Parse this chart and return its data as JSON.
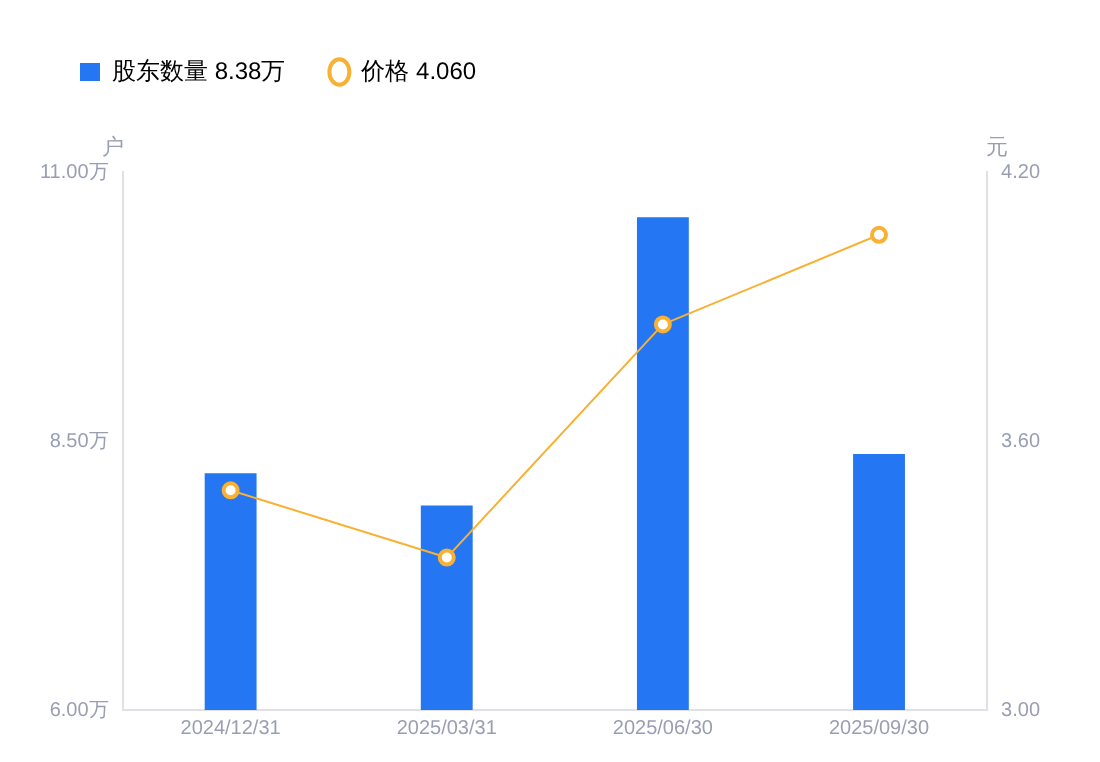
{
  "chart_data": {
    "type": "bar",
    "ylabel": "户",
    "y2label": "元",
    "categories": [
      "2024/12/31",
      "2025/03/31",
      "2025/06/30",
      "2025/09/30"
    ],
    "series": [
      {
        "name": "股东数量 8.38万",
        "color": "#2476f2",
        "values": [
          8.2,
          7.9,
          10.58,
          8.38
        ]
      },
      {
        "name": "价格 4.060",
        "type": "line",
        "axis": "y2",
        "color": "#f8b133",
        "values": [
          3.49,
          3.34,
          3.86,
          4.06
        ]
      }
    ],
    "ylim": [
      6,
      11
    ],
    "yticks": [
      {
        "value": 6,
        "label": "6.00万"
      },
      {
        "value": 8.5,
        "label": "8.50万"
      },
      {
        "value": 11,
        "label": "11.00万"
      }
    ],
    "y2lim": [
      3,
      4.2
    ],
    "y2ticks": [
      {
        "value": 3,
        "label": "3.00"
      },
      {
        "value": 3.6,
        "label": "3.60"
      },
      {
        "value": 4.2,
        "label": "4.20"
      }
    ],
    "grid": false,
    "legend": "top left",
    "marker": "circle"
  }
}
